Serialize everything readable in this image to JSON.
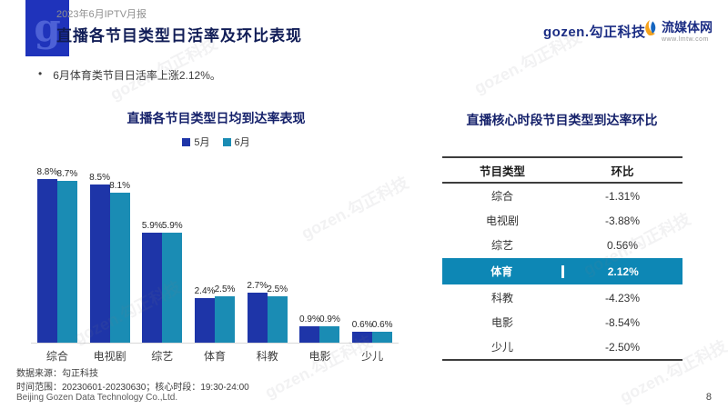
{
  "page": {
    "number": "8"
  },
  "header": {
    "report_label": "2023年6月IPTV月报",
    "title": "直播各节目类型日活率及环比表现",
    "logo_letter": "g"
  },
  "brand": {
    "gozen": "gozen.勾正科技",
    "lmtw_name": "流媒体网",
    "lmtw_url": "www.lmtw.com"
  },
  "summary_bullet": "6月体育类节目日活率上涨2.12%。",
  "chart_data": {
    "type": "bar",
    "title": "直播各节目类型日均到达率表现",
    "categories": [
      "综合",
      "电视剧",
      "综艺",
      "体育",
      "科教",
      "电影",
      "少儿"
    ],
    "series": [
      {
        "name": "5月",
        "color": "#1e35a8",
        "values": [
          8.8,
          8.5,
          5.9,
          2.4,
          2.7,
          0.9,
          0.6
        ]
      },
      {
        "name": "6月",
        "color": "#1a8cb4",
        "values": [
          8.7,
          8.1,
          5.9,
          2.5,
          2.5,
          0.9,
          0.6
        ]
      }
    ],
    "unit": "%",
    "ylim": [
      0,
      9.4
    ],
    "legend_position": "top",
    "grid": false,
    "value_labels": true
  },
  "table": {
    "title": "直播核心时段节目类型到达率环比",
    "headers": [
      "节目类型",
      "环比"
    ],
    "highlight_color": "#0d87b5",
    "rows": [
      {
        "type": "综合",
        "value": "-1.31%",
        "highlight": false
      },
      {
        "type": "电视剧",
        "value": "-3.88%",
        "highlight": false
      },
      {
        "type": "综艺",
        "value": "0.56%",
        "highlight": false
      },
      {
        "type": "体育",
        "value": "2.12%",
        "highlight": true
      },
      {
        "type": "科教",
        "value": "-4.23%",
        "highlight": false
      },
      {
        "type": "电影",
        "value": "-8.54%",
        "highlight": false
      },
      {
        "type": "少儿",
        "value": "-2.50%",
        "highlight": false
      }
    ]
  },
  "footer": {
    "source": "数据来源：勾正科技",
    "range": "时间范围：20230601-20230630；核心时段：19:30-24:00",
    "company": "Beijing Gozen Data Technology Co.,Ltd."
  },
  "watermark_text": "gozen.勾正科技"
}
